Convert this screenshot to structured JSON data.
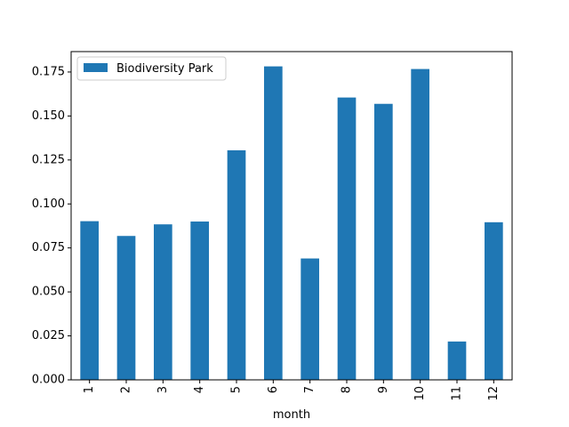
{
  "chart_data": {
    "type": "bar",
    "categories": [
      "1",
      "2",
      "3",
      "4",
      "5",
      "6",
      "7",
      "8",
      "9",
      "10",
      "11",
      "12"
    ],
    "series": [
      {
        "name": "Biodiversity Park",
        "color": "#1f77b4",
        "values": [
          0.0902,
          0.0818,
          0.0884,
          0.09,
          0.1305,
          0.1782,
          0.069,
          0.1605,
          0.1569,
          0.1767,
          0.0218,
          0.0896
        ]
      }
    ],
    "title": "",
    "xlabel": "month",
    "ylabel": "",
    "ylim": [
      0,
      0.1866
    ],
    "yticks": [
      "0.000",
      "0.025",
      "0.050",
      "0.075",
      "0.100",
      "0.125",
      "0.150",
      "0.175"
    ],
    "ytick_values": [
      0,
      0.025,
      0.05,
      0.075,
      0.1,
      0.125,
      0.15,
      0.175
    ],
    "grid": false,
    "legend_position": "upper left"
  }
}
